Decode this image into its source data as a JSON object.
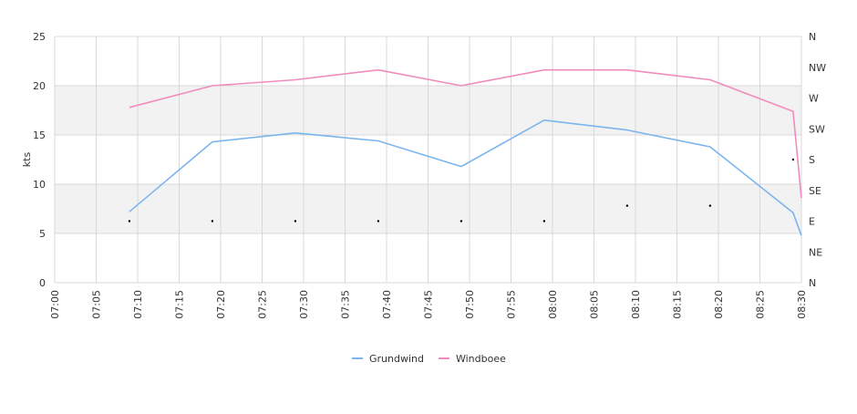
{
  "chart_data": {
    "type": "line",
    "ylabel": "kts",
    "ylim": [
      0,
      25
    ],
    "y_ticks": [
      0,
      5,
      10,
      15,
      20,
      25
    ],
    "x_ticks": [
      "07:00",
      "07:05",
      "07:10",
      "07:15",
      "07:20",
      "07:25",
      "07:30",
      "07:35",
      "07:40",
      "07:45",
      "07:50",
      "07:55",
      "08:00",
      "08:05",
      "08:10",
      "08:15",
      "08:20",
      "08:25",
      "08:30"
    ],
    "right_axis": {
      "labels": [
        "N",
        "NE",
        "E",
        "SE",
        "S",
        "SW",
        "W",
        "NW",
        "N"
      ],
      "range": [
        0,
        360
      ]
    },
    "x": [
      "07:09",
      "07:19",
      "07:29",
      "07:39",
      "07:49",
      "07:59",
      "08:09",
      "08:19",
      "08:29",
      "08:30"
    ],
    "series": [
      {
        "name": "Grundwind",
        "color": "#7cb5ec",
        "values": [
          7.2,
          14.3,
          15.2,
          14.4,
          11.8,
          16.5,
          15.5,
          13.8,
          7.1,
          4.8
        ]
      },
      {
        "name": "Windboee",
        "color": "#f08cbd",
        "values": [
          17.8,
          20.0,
          20.6,
          21.6,
          20.0,
          21.6,
          21.6,
          20.6,
          17.4,
          8.6
        ]
      }
    ],
    "direction": {
      "x": [
        "07:09",
        "07:19",
        "07:29",
        "07:39",
        "07:49",
        "07:59",
        "08:09",
        "08:19",
        "08:29"
      ],
      "values": [
        90,
        90,
        90,
        90,
        90,
        90,
        112.5,
        112.5,
        180
      ]
    },
    "grid": true,
    "legend": "bottom-center"
  },
  "colors": {
    "band": "#f2f2f2",
    "grid": "#d8d8d8",
    "axis": "#cccccc",
    "text": "#333333"
  }
}
